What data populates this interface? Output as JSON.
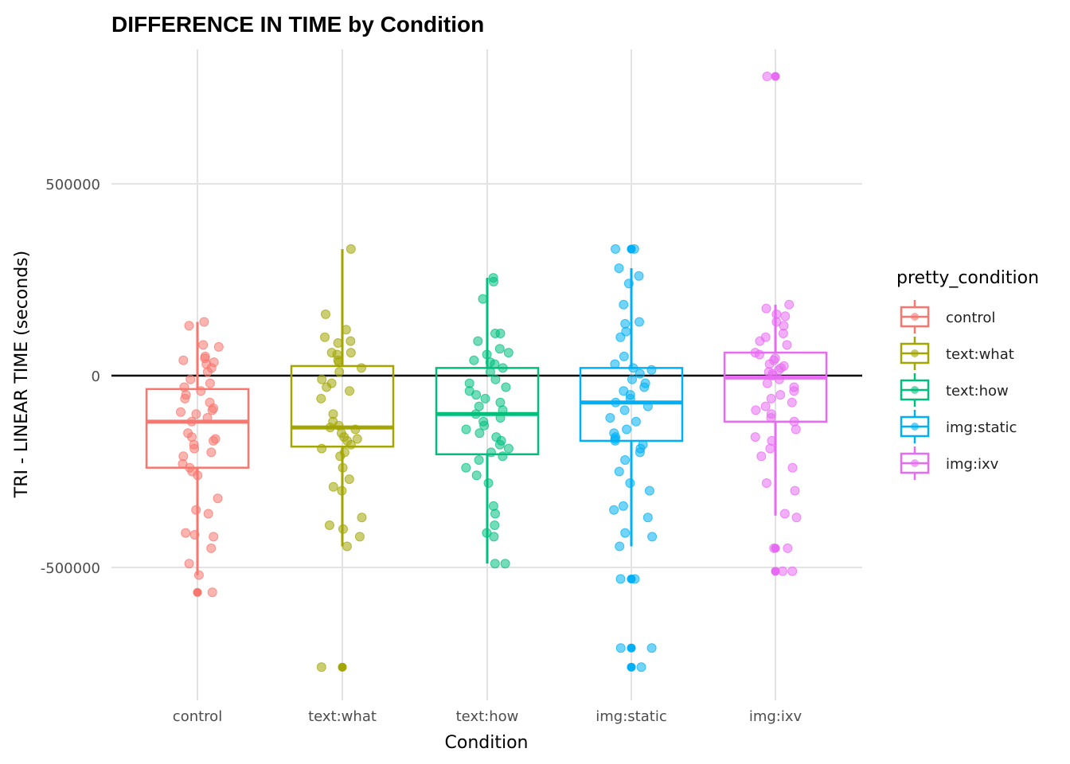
{
  "chart_data": {
    "type": "boxplot-jitter",
    "title": "DIFFERENCE IN TIME by Condition",
    "xlabel": "Condition",
    "ylabel": "TRI - LINEAR TIME (seconds)",
    "ylim": [
      -830000,
      850000
    ],
    "yticks": [
      500000,
      0,
      -500000
    ],
    "yticklabels": [
      "500000",
      "0",
      "-500000"
    ],
    "grid": true,
    "reference_line_y": 0,
    "legend": {
      "title": "pretty_condition",
      "position": "right"
    },
    "categories": [
      "control",
      "text:what",
      "text:how",
      "img:static",
      "img:ixv"
    ],
    "colors": [
      "#F8766D",
      "#A3A500",
      "#00BF7D",
      "#00B0F6",
      "#E76BF3"
    ],
    "boxes": [
      {
        "category": "control",
        "q1": -240000,
        "median": -120000,
        "q3": -35000,
        "whisker_low": -520000,
        "whisker_high": 140000,
        "outliers": [
          -565000
        ]
      },
      {
        "category": "text:what",
        "q1": -185000,
        "median": -135000,
        "q3": 25000,
        "whisker_low": -445000,
        "whisker_high": 330000,
        "outliers": [
          -760000
        ]
      },
      {
        "category": "text:how",
        "q1": -205000,
        "median": -100000,
        "q3": 20000,
        "whisker_low": -490000,
        "whisker_high": 255000,
        "outliers": []
      },
      {
        "category": "img:static",
        "q1": -170000,
        "median": -70000,
        "q3": 20000,
        "whisker_low": -445000,
        "whisker_high": 280000,
        "outliers": [
          330000,
          -530000,
          -710000,
          -760000
        ]
      },
      {
        "category": "img:ixv",
        "q1": -120000,
        "median": -5000,
        "q3": 60000,
        "whisker_low": -365000,
        "whisker_high": 185000,
        "outliers": [
          780000,
          -450000,
          -510000
        ]
      }
    ],
    "points": [
      {
        "category": "control",
        "values": [
          140000,
          130000,
          80000,
          75000,
          50000,
          45000,
          40000,
          35000,
          30000,
          20000,
          10000,
          -10000,
          -20000,
          -30000,
          -40000,
          -50000,
          -60000,
          -70000,
          -85000,
          -90000,
          -95000,
          -100000,
          -110000,
          -120000,
          -150000,
          -160000,
          -165000,
          -170000,
          -180000,
          -190000,
          -200000,
          -210000,
          -230000,
          -240000,
          -250000,
          -260000,
          -320000,
          -350000,
          -360000,
          -410000,
          -415000,
          -420000,
          -450000,
          -490000,
          -520000,
          -565000
        ]
      },
      {
        "category": "text:what",
        "values": [
          330000,
          160000,
          120000,
          100000,
          90000,
          85000,
          60000,
          60000,
          55000,
          40000,
          35000,
          20000,
          10000,
          -10000,
          -20000,
          -30000,
          -40000,
          -60000,
          -100000,
          -120000,
          -130000,
          -135000,
          -140000,
          -150000,
          -160000,
          -165000,
          -170000,
          -180000,
          -190000,
          -200000,
          -210000,
          -240000,
          -270000,
          -290000,
          -300000,
          -370000,
          -390000,
          -400000,
          -420000,
          -445000,
          -760000
        ]
      },
      {
        "category": "text:how",
        "values": [
          255000,
          245000,
          200000,
          110000,
          110000,
          90000,
          70000,
          60000,
          55000,
          40000,
          35000,
          30000,
          20000,
          10000,
          -10000,
          -20000,
          -30000,
          -40000,
          -50000,
          -60000,
          -70000,
          -80000,
          -90000,
          -100000,
          -110000,
          -120000,
          -130000,
          -140000,
          -150000,
          -160000,
          -170000,
          -180000,
          -190000,
          -200000,
          -210000,
          -220000,
          -240000,
          -260000,
          -280000,
          -340000,
          -360000,
          -390000,
          -410000,
          -420000,
          -490000,
          -490000
        ]
      },
      {
        "category": "img:static",
        "values": [
          330000,
          330000,
          280000,
          260000,
          240000,
          185000,
          140000,
          135000,
          115000,
          100000,
          50000,
          30000,
          20000,
          15000,
          5000,
          -10000,
          -20000,
          -30000,
          -40000,
          -50000,
          -60000,
          -70000,
          -80000,
          -90000,
          -110000,
          -120000,
          -140000,
          -150000,
          -160000,
          -165000,
          -170000,
          -180000,
          -190000,
          -200000,
          -220000,
          -250000,
          -280000,
          -300000,
          -340000,
          -350000,
          -370000,
          -410000,
          -420000,
          -445000,
          -530000,
          -530000,
          -710000,
          -710000,
          -760000
        ]
      },
      {
        "category": "img:ixv",
        "values": [
          780000,
          185000,
          175000,
          160000,
          155000,
          140000,
          130000,
          110000,
          100000,
          90000,
          80000,
          60000,
          55000,
          45000,
          40000,
          30000,
          25000,
          20000,
          15000,
          10000,
          5000,
          0,
          -10000,
          -20000,
          -30000,
          -40000,
          -50000,
          -60000,
          -70000,
          -80000,
          -90000,
          -100000,
          -110000,
          -120000,
          -140000,
          -160000,
          -170000,
          -190000,
          -210000,
          -240000,
          -280000,
          -300000,
          -360000,
          -370000,
          -450000,
          -450000,
          -510000,
          -510000
        ]
      }
    ]
  }
}
